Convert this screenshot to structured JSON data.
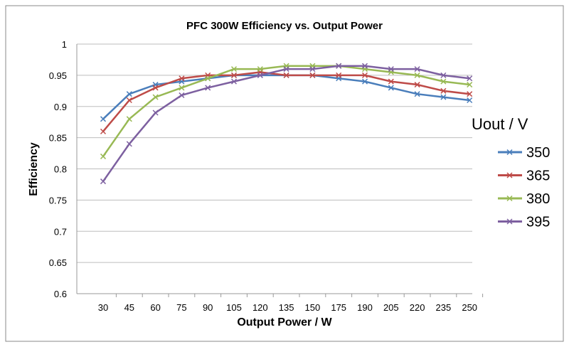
{
  "chart_data": {
    "type": "line",
    "title": "PFC 300W Efficiency vs. Output Power",
    "xlabel": "Output Power / W",
    "ylabel": "Efficiency",
    "legend_title": "Uout / V",
    "legend_position": "right",
    "grid": true,
    "ylim": [
      0.6,
      1
    ],
    "yticks": [
      "0.6",
      "0.65",
      "0.7",
      "0.75",
      "0.8",
      "0.85",
      "0.9",
      "0.95",
      "1"
    ],
    "categories": [
      "30",
      "45",
      "60",
      "75",
      "90",
      "105",
      "120",
      "135",
      "150",
      "175",
      "190",
      "205",
      "220",
      "235",
      "250"
    ],
    "series": [
      {
        "name": "350",
        "color": "#4a7ebb",
        "values": [
          0.88,
          0.92,
          0.935,
          0.94,
          0.945,
          0.95,
          0.95,
          0.95,
          0.95,
          0.945,
          0.94,
          0.93,
          0.92,
          0.915,
          0.91
        ]
      },
      {
        "name": "365",
        "color": "#be4b48",
        "values": [
          0.86,
          0.91,
          0.93,
          0.945,
          0.95,
          0.95,
          0.955,
          0.95,
          0.95,
          0.95,
          0.95,
          0.94,
          0.935,
          0.925,
          0.92
        ]
      },
      {
        "name": "380",
        "color": "#98b954",
        "values": [
          0.82,
          0.88,
          0.915,
          0.93,
          0.945,
          0.96,
          0.96,
          0.965,
          0.965,
          0.965,
          0.96,
          0.955,
          0.95,
          0.94,
          0.935
        ]
      },
      {
        "name": "395",
        "color": "#7d60a0",
        "values": [
          0.78,
          0.84,
          0.89,
          0.918,
          0.93,
          0.94,
          0.95,
          0.96,
          0.96,
          0.965,
          0.965,
          0.96,
          0.96,
          0.95,
          0.945
        ]
      }
    ]
  }
}
